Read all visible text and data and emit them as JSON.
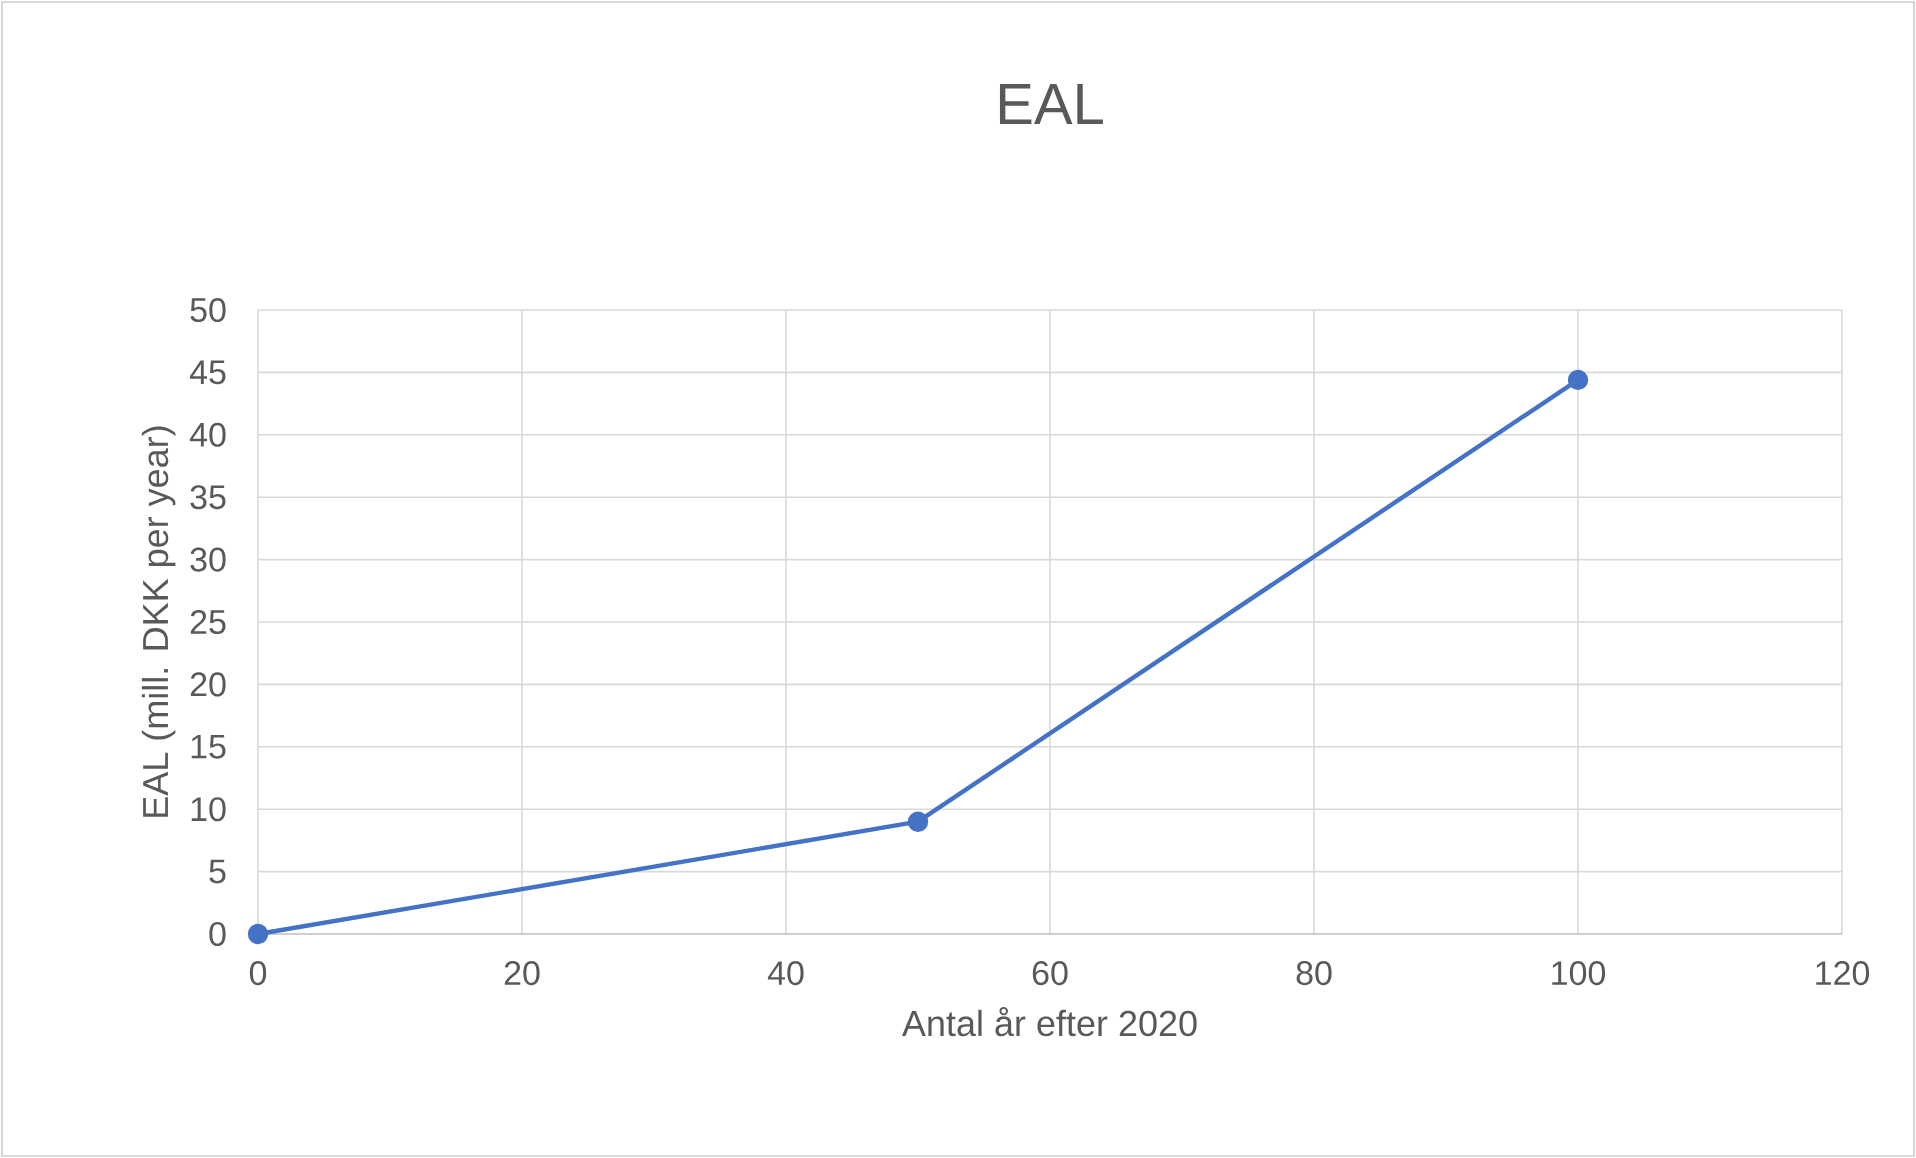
{
  "chart_data": {
    "type": "line",
    "title": "EAL",
    "xlabel": "Antal år efter 2020",
    "ylabel": "EAL (mill. DKK per year)",
    "x": [
      0,
      50,
      100
    ],
    "series": [
      {
        "color": "#4472c4",
        "values": [
          0,
          9,
          44.4
        ]
      }
    ],
    "xlim": [
      0,
      120
    ],
    "ylim": [
      0,
      50
    ],
    "xticks": [
      0,
      20,
      40,
      60,
      80,
      100,
      120
    ],
    "yticks": [
      0,
      5,
      10,
      15,
      20,
      25,
      30,
      35,
      40,
      45,
      50
    ],
    "grid": true,
    "marker": "circle"
  }
}
